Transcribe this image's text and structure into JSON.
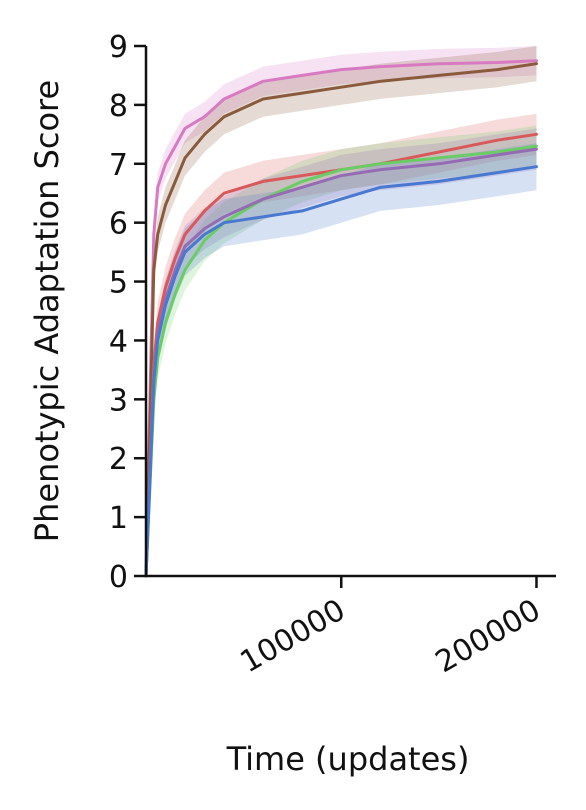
{
  "chart_data": {
    "type": "line",
    "title": "",
    "xlabel": "Time (updates)",
    "ylabel": "Phenotypic Adaptation Score",
    "xlim": [
      0,
      210000
    ],
    "ylim": [
      0,
      9
    ],
    "xticks": [
      100000,
      200000
    ],
    "yticks": [
      0,
      1,
      2,
      3,
      4,
      5,
      6,
      7,
      8,
      9
    ],
    "grid": false,
    "legend": "none",
    "series": [
      {
        "color": "#d87ac2",
        "x": [
          0,
          2000,
          4000,
          6000,
          10000,
          15000,
          20000,
          30000,
          40000,
          60000,
          80000,
          100000,
          120000,
          150000,
          180000,
          200000
        ],
        "y": [
          0,
          3.0,
          5.8,
          6.6,
          7.0,
          7.3,
          7.6,
          7.8,
          8.1,
          8.4,
          8.5,
          8.6,
          8.65,
          8.7,
          8.72,
          8.75
        ],
        "band": 0.25
      },
      {
        "color": "#8a5a3c",
        "x": [
          0,
          2000,
          4000,
          6000,
          10000,
          15000,
          20000,
          30000,
          40000,
          60000,
          80000,
          100000,
          120000,
          150000,
          180000,
          200000
        ],
        "y": [
          0,
          2.5,
          5.2,
          5.8,
          6.3,
          6.7,
          7.1,
          7.5,
          7.8,
          8.1,
          8.2,
          8.3,
          8.4,
          8.5,
          8.6,
          8.7
        ],
        "band": 0.3
      },
      {
        "color": "#d9595a",
        "x": [
          0,
          2000,
          4000,
          6000,
          10000,
          15000,
          20000,
          30000,
          40000,
          60000,
          80000,
          100000,
          120000,
          150000,
          180000,
          200000
        ],
        "y": [
          0,
          1.8,
          3.6,
          4.3,
          4.9,
          5.4,
          5.8,
          6.2,
          6.5,
          6.7,
          6.8,
          6.9,
          7.0,
          7.2,
          7.4,
          7.5
        ],
        "band": 0.35
      },
      {
        "color": "#6acc64",
        "x": [
          0,
          2000,
          4000,
          6000,
          10000,
          15000,
          20000,
          30000,
          40000,
          60000,
          80000,
          100000,
          120000,
          150000,
          180000,
          200000
        ],
        "y": [
          0,
          1.5,
          3.0,
          3.7,
          4.3,
          4.8,
          5.2,
          5.7,
          6.0,
          6.4,
          6.7,
          6.9,
          7.0,
          7.1,
          7.2,
          7.3
        ],
        "band": 0.35
      },
      {
        "color": "#956cb4",
        "x": [
          0,
          2000,
          4000,
          6000,
          10000,
          15000,
          20000,
          30000,
          40000,
          60000,
          80000,
          100000,
          120000,
          150000,
          180000,
          200000
        ],
        "y": [
          0,
          1.7,
          3.4,
          4.1,
          4.7,
          5.2,
          5.6,
          5.9,
          6.1,
          6.4,
          6.6,
          6.8,
          6.9,
          7.0,
          7.15,
          7.25
        ],
        "band": 0.35
      },
      {
        "color": "#4878cf",
        "x": [
          0,
          2000,
          4000,
          6000,
          10000,
          15000,
          20000,
          30000,
          40000,
          60000,
          80000,
          100000,
          120000,
          150000,
          180000,
          200000
        ],
        "y": [
          0,
          1.6,
          3.3,
          4.0,
          4.6,
          5.1,
          5.5,
          5.8,
          6.0,
          6.1,
          6.2,
          6.4,
          6.6,
          6.7,
          6.85,
          6.95
        ],
        "band": 0.4
      }
    ]
  }
}
